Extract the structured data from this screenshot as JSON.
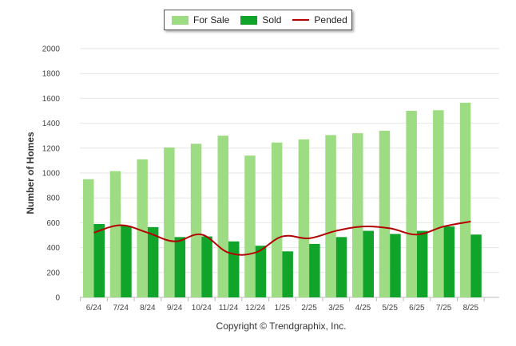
{
  "chart_data": {
    "type": "bar",
    "categories": [
      "6/24",
      "7/24",
      "8/24",
      "9/24",
      "10/24",
      "11/24",
      "12/24",
      "1/25",
      "2/25",
      "3/25",
      "4/25",
      "5/25",
      "6/25",
      "7/25",
      "8/25"
    ],
    "series": [
      {
        "name": "For Sale",
        "type": "bar",
        "color": "#9edc84",
        "values": [
          950,
          1015,
          1110,
          1205,
          1235,
          1300,
          1140,
          1245,
          1270,
          1305,
          1320,
          1340,
          1500,
          1505,
          1565
        ]
      },
      {
        "name": "Sold",
        "type": "bar",
        "color": "#10a52a",
        "values": [
          590,
          575,
          565,
          485,
          490,
          450,
          415,
          370,
          430,
          485,
          535,
          510,
          535,
          570,
          505
        ]
      },
      {
        "name": "Pended",
        "type": "line",
        "color": "#b30000",
        "values": [
          520,
          580,
          520,
          450,
          505,
          360,
          360,
          490,
          475,
          535,
          570,
          555,
          505,
          570,
          610
        ]
      }
    ],
    "xlabel": "",
    "ylabel": "Number of Homes",
    "ylim": [
      0,
      2000
    ],
    "yticks": [
      0,
      200,
      400,
      600,
      800,
      1000,
      1200,
      1400,
      1600,
      1800,
      2000
    ],
    "grid": true,
    "legend_position": "top-center"
  },
  "legend": {
    "for_sale": "For Sale",
    "sold": "Sold",
    "pended": "Pended"
  },
  "footer": "Copyright © Trendgraphix, Inc."
}
